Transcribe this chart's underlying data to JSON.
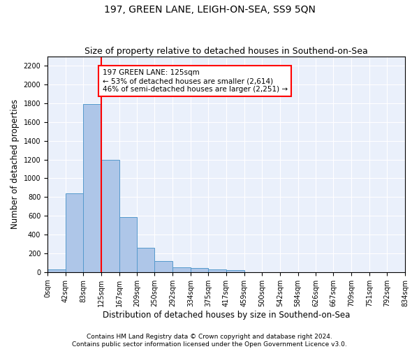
{
  "title": "197, GREEN LANE, LEIGH-ON-SEA, SS9 5QN",
  "subtitle": "Size of property relative to detached houses in Southend-on-Sea",
  "xlabel": "Distribution of detached houses by size in Southend-on-Sea",
  "ylabel": "Number of detached properties",
  "bar_values": [
    25,
    840,
    1790,
    1200,
    585,
    260,
    115,
    50,
    45,
    30,
    18,
    0,
    0,
    0,
    0,
    0,
    0,
    0,
    0,
    0
  ],
  "bin_edges": [
    0,
    42,
    83,
    125,
    167,
    209,
    250,
    292,
    334,
    375,
    417,
    459,
    500,
    542,
    584,
    626,
    667,
    709,
    751,
    792,
    834
  ],
  "bin_labels": [
    "0sqm",
    "42sqm",
    "83sqm",
    "125sqm",
    "167sqm",
    "209sqm",
    "250sqm",
    "292sqm",
    "334sqm",
    "375sqm",
    "417sqm",
    "459sqm",
    "500sqm",
    "542sqm",
    "584sqm",
    "626sqm",
    "667sqm",
    "709sqm",
    "751sqm",
    "792sqm",
    "834sqm"
  ],
  "bar_color": "#aec6e8",
  "bar_edge_color": "#5599cc",
  "vline_x": 125,
  "vline_color": "red",
  "annotation_text": "197 GREEN LANE: 125sqm\n← 53% of detached houses are smaller (2,614)\n46% of semi-detached houses are larger (2,251) →",
  "annotation_box_color": "white",
  "annotation_box_edge_color": "red",
  "ylim": [
    0,
    2300
  ],
  "yticks": [
    0,
    200,
    400,
    600,
    800,
    1000,
    1200,
    1400,
    1600,
    1800,
    2000,
    2200
  ],
  "background_color": "#eaf0fb",
  "grid_color": "white",
  "footer_line1": "Contains HM Land Registry data © Crown copyright and database right 2024.",
  "footer_line2": "Contains public sector information licensed under the Open Government Licence v3.0.",
  "title_fontsize": 10,
  "subtitle_fontsize": 9,
  "xlabel_fontsize": 8.5,
  "ylabel_fontsize": 8.5,
  "tick_fontsize": 7,
  "footer_fontsize": 6.5,
  "annot_fontsize": 7.5
}
